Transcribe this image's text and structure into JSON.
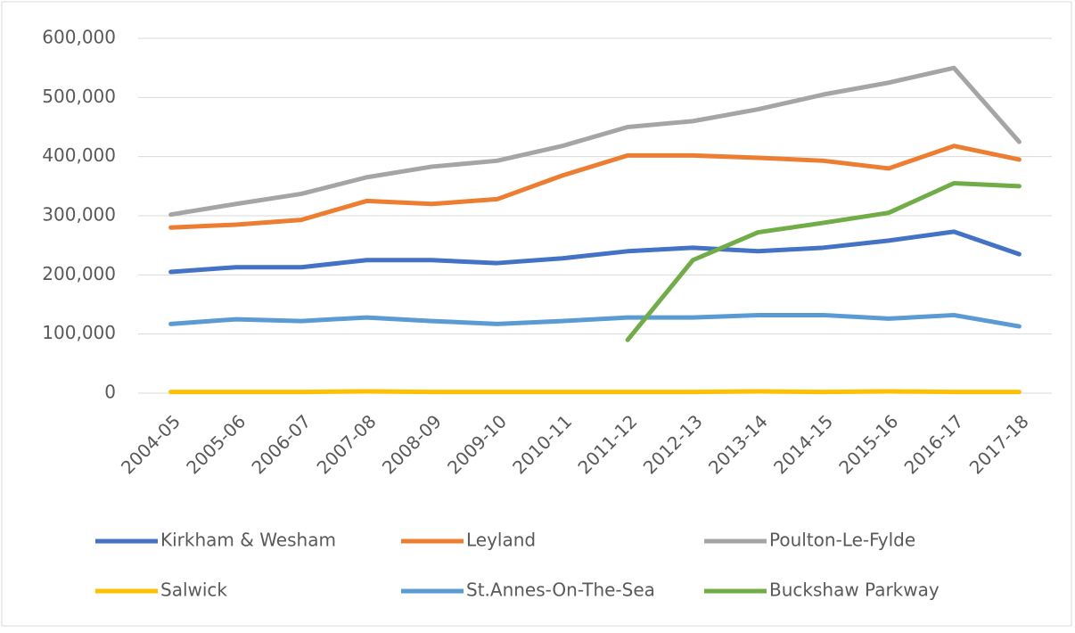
{
  "chart_data": {
    "type": "line",
    "categories": [
      "2004-05",
      "2005-06",
      "2006-07",
      "2007-08",
      "2008-09",
      "2009-10",
      "2010-11",
      "2011-12",
      "2012-13",
      "2013-14",
      "2014-15",
      "2015-16",
      "2016-17",
      "2017-18"
    ],
    "series": [
      {
        "name": "Kirkham & Wesham",
        "color": "#4472c4",
        "values": [
          205000,
          213000,
          213000,
          225000,
          225000,
          220000,
          228000,
          240000,
          246000,
          240000,
          246000,
          258000,
          273000,
          235000
        ]
      },
      {
        "name": "Leyland",
        "color": "#ed7d31",
        "values": [
          280000,
          285000,
          293000,
          325000,
          320000,
          328000,
          368000,
          402000,
          402000,
          398000,
          393000,
          380000,
          418000,
          395000
        ]
      },
      {
        "name": "Poulton-Le-Fylde",
        "color": "#a5a5a5",
        "values": [
          302000,
          320000,
          337000,
          365000,
          383000,
          393000,
          418000,
          450000,
          460000,
          480000,
          505000,
          525000,
          550000,
          425000
        ]
      },
      {
        "name": "Salwick",
        "color": "#ffc000",
        "values": [
          2000,
          2000,
          2000,
          3000,
          2000,
          2000,
          2000,
          2000,
          2000,
          3000,
          2000,
          3000,
          2000,
          2000
        ]
      },
      {
        "name": "St.Annes-On-The-Sea",
        "color": "#5b9bd5",
        "values": [
          117000,
          125000,
          122000,
          128000,
          122000,
          117000,
          122000,
          128000,
          128000,
          132000,
          132000,
          126000,
          132000,
          113000
        ]
      },
      {
        "name": "Buckshaw Parkway",
        "color": "#70ad47",
        "values": [
          null,
          null,
          null,
          null,
          null,
          null,
          null,
          90000,
          225000,
          272000,
          288000,
          305000,
          355000,
          350000
        ]
      }
    ],
    "ylim": [
      0,
      600000
    ],
    "yticks": [
      0,
      {
        "value": 100000,
        "label": "100,000"
      },
      {
        "value": 200000,
        "label": "200,000"
      },
      {
        "value": 300000,
        "label": "300,000"
      },
      {
        "value": 400000,
        "label": "400,000"
      },
      {
        "value": 500000,
        "label": "500,000"
      },
      {
        "value": 600000,
        "label": "600,000"
      }
    ],
    "grid": true,
    "legend": "bottom"
  }
}
